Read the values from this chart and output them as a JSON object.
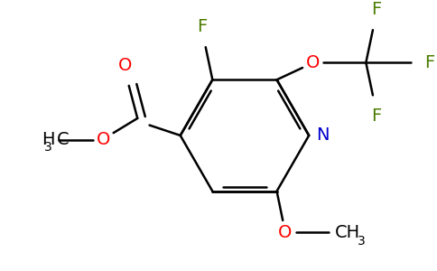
{
  "bg_color": "#ffffff",
  "bond_color": "#000000",
  "N_color": "#0000cd",
  "O_color": "#ff0000",
  "F_color": "#4a7c00",
  "figsize": [
    4.84,
    3.0
  ],
  "dpi": 100,
  "xlim": [
    0,
    484
  ],
  "ylim": [
    0,
    300
  ]
}
